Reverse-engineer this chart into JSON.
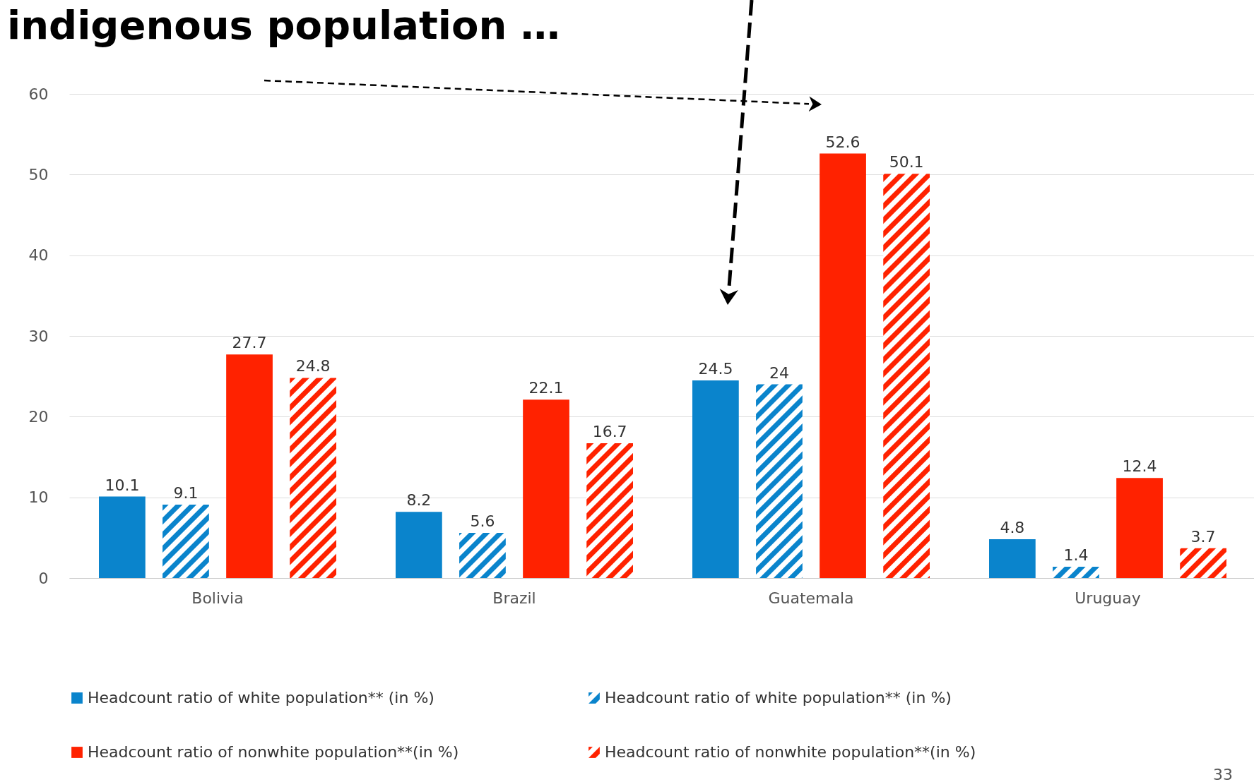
{
  "chart_data": {
    "type": "bar",
    "title": "indigenous population …",
    "categories": [
      "Bolivia",
      "Brazil",
      "Guatemala",
      "Uruguay"
    ],
    "series": [
      {
        "name": "Headcount ratio of white population** (in %)",
        "color": "#0a84cc",
        "values": [
          10.1,
          8.2,
          24.5,
          4.8
        ]
      },
      {
        "name": "Headcount ratio of white population** (in %)",
        "color": "#0a84cc",
        "values": [
          9.1,
          5.6,
          24,
          1.4
        ]
      },
      {
        "name": "Headcount ratio of nonwhite population**(in %)",
        "color": "#ff2200",
        "values": [
          27.7,
          22.1,
          52.6,
          12.4
        ]
      },
      {
        "name": "Headcount ratio of nonwhite population**(in %)",
        "color": "#ff2200",
        "values": [
          24.8,
          16.7,
          50.1,
          3.7
        ]
      }
    ],
    "ylim": [
      0,
      60
    ],
    "yticks": [
      0,
      10,
      20,
      30,
      40,
      50,
      60
    ],
    "grid": "y",
    "legend": "bottom",
    "data_labels": true,
    "annotations": [
      "33"
    ]
  }
}
